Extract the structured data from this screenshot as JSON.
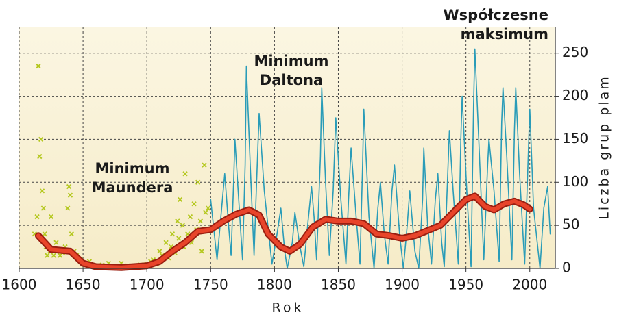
{
  "chart_data": {
    "type": "line",
    "xlabel": "Rok",
    "ylabel": "Liczba grup plam",
    "annotations": [
      [
        "Minimum",
        "Maundera"
      ],
      [
        "Minimum",
        "Daltona"
      ],
      [
        "Współczesne",
        "maksimum"
      ]
    ],
    "xlim": [
      1600,
      2020
    ],
    "ylim": [
      0,
      280
    ],
    "xticks": [
      1600,
      1650,
      1700,
      1750,
      1800,
      1850,
      1900,
      1950,
      2000
    ],
    "yticks": [
      0,
      50,
      100,
      150,
      200,
      250
    ],
    "grid": true,
    "series": [
      {
        "color": "#b5c820",
        "marker": "x",
        "x": [
          1612,
          1614,
          1615,
          1616,
          1617,
          1618,
          1619,
          1620,
          1621,
          1622,
          1624,
          1625,
          1627,
          1629,
          1630,
          1632,
          1634,
          1636,
          1638,
          1639,
          1640,
          1641,
          1643,
          1645,
          1648,
          1650,
          1655,
          1660,
          1665,
          1670,
          1675,
          1680,
          1685,
          1690,
          1695,
          1700,
          1703,
          1705,
          1708,
          1710,
          1712,
          1715,
          1717,
          1719,
          1720,
          1722,
          1724,
          1725,
          1726,
          1728,
          1729,
          1730,
          1732,
          1734,
          1735,
          1737,
          1739,
          1740,
          1742,
          1743,
          1745,
          1746,
          1748
        ],
        "values": [
          40,
          60,
          235,
          130,
          150,
          90,
          70,
          40,
          25,
          15,
          20,
          60,
          15,
          30,
          20,
          15,
          18,
          25,
          70,
          95,
          85,
          40,
          20,
          15,
          10,
          5,
          8,
          3,
          4,
          6,
          2,
          6,
          3,
          2,
          4,
          5,
          8,
          10,
          6,
          20,
          15,
          30,
          12,
          25,
          40,
          18,
          55,
          35,
          80,
          50,
          25,
          110,
          40,
          60,
          30,
          75,
          45,
          100,
          55,
          20,
          120,
          65,
          70
        ]
      },
      {
        "color": "#2a9cb8",
        "x": [
          1750,
          1755,
          1758,
          1761,
          1764,
          1766,
          1768,
          1769,
          1772,
          1775,
          1777,
          1778,
          1781,
          1784,
          1786,
          1788,
          1792,
          1798,
          1802,
          1805,
          1808,
          1810,
          1814,
          1816,
          1820,
          1823,
          1826,
          1829,
          1831,
          1833,
          1836,
          1837,
          1840,
          1843,
          1846,
          1848,
          1852,
          1856,
          1858,
          1860,
          1864,
          1867,
          1869,
          1870,
          1874,
          1878,
          1881,
          1883,
          1886,
          1889,
          1892,
          1894,
          1898,
          1901,
          1904,
          1906,
          1910,
          1913,
          1916,
          1917,
          1920,
          1923,
          1926,
          1928,
          1931,
          1933,
          1936,
          1937,
          1940,
          1944,
          1946,
          1947,
          1951,
          1954,
          1956,
          1957,
          1960,
          1964,
          1967,
          1968,
          1972,
          1976,
          1978,
          1979,
          1982,
          1986,
          1988,
          1989,
          1992,
          1996,
          1999,
          2000,
          2003,
          2008,
          2011,
          2014,
          2016
        ],
        "values": [
          80,
          10,
          60,
          110,
          50,
          15,
          100,
          150,
          80,
          10,
          120,
          235,
          120,
          15,
          100,
          180,
          90,
          5,
          40,
          70,
          20,
          0,
          30,
          65,
          25,
          2,
          50,
          95,
          60,
          10,
          130,
          210,
          100,
          15,
          90,
          175,
          80,
          5,
          80,
          140,
          60,
          5,
          120,
          185,
          60,
          0,
          70,
          100,
          40,
          5,
          90,
          120,
          40,
          0,
          50,
          90,
          20,
          0,
          80,
          140,
          50,
          5,
          80,
          110,
          30,
          2,
          120,
          160,
          90,
          5,
          150,
          200,
          80,
          2,
          190,
          255,
          150,
          10,
          120,
          150,
          90,
          8,
          170,
          210,
          130,
          10,
          160,
          210,
          110,
          5,
          140,
          185,
          70,
          0,
          70,
          95,
          40
        ]
      },
      {
        "color": "#e8442a",
        "x": [
          1615,
          1625,
          1640,
          1650,
          1660,
          1680,
          1700,
          1710,
          1720,
          1730,
          1740,
          1750,
          1760,
          1770,
          1780,
          1788,
          1795,
          1805,
          1812,
          1820,
          1830,
          1840,
          1850,
          1860,
          1870,
          1880,
          1890,
          1900,
          1910,
          1920,
          1930,
          1940,
          1950,
          1957,
          1965,
          1972,
          1980,
          1988,
          1995,
          2000
        ],
        "values": [
          38,
          22,
          20,
          6,
          2,
          1,
          3,
          8,
          20,
          30,
          43,
          45,
          55,
          63,
          68,
          62,
          40,
          25,
          20,
          28,
          48,
          57,
          55,
          55,
          52,
          40,
          38,
          35,
          38,
          44,
          50,
          65,
          80,
          84,
          72,
          68,
          75,
          78,
          74,
          69
        ]
      }
    ]
  }
}
